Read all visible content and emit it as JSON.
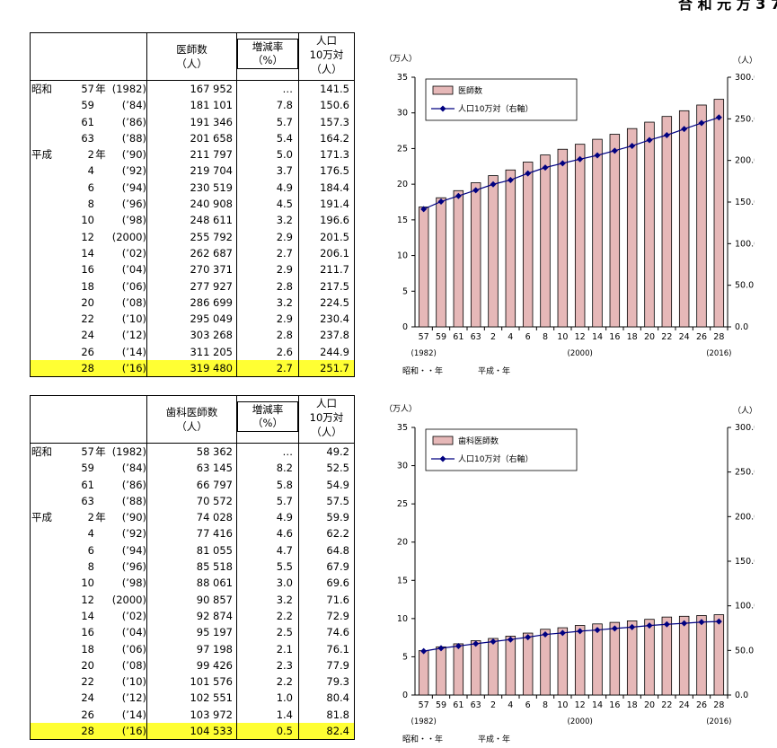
{
  "corner_text": "合 和 元 方 3 7",
  "tables": [
    {
      "headers": {
        "count": "医師数\n（人）",
        "rate": "増減率\n（%）",
        "per": "人口\n10万対\n（人）"
      },
      "rows": [
        {
          "era": "昭和",
          "y": "57",
          "label": "年",
          "p": "(1982)",
          "count": "167 952",
          "rate": "…",
          "per": "141.5"
        },
        {
          "era": "",
          "y": "59",
          "label": "",
          "p": "(’84)",
          "count": "181 101",
          "rate": "7.8",
          "per": "150.6"
        },
        {
          "era": "",
          "y": "61",
          "label": "",
          "p": "(’86)",
          "count": "191 346",
          "rate": "5.7",
          "per": "157.3"
        },
        {
          "era": "",
          "y": "63",
          "label": "",
          "p": "(’88)",
          "count": "201 658",
          "rate": "5.4",
          "per": "164.2"
        },
        {
          "era": "平成",
          "y": "2",
          "label": "年",
          "p": "(’90)",
          "count": "211 797",
          "rate": "5.0",
          "per": "171.3"
        },
        {
          "era": "",
          "y": "4",
          "label": "",
          "p": "(’92)",
          "count": "219 704",
          "rate": "3.7",
          "per": "176.5"
        },
        {
          "era": "",
          "y": "6",
          "label": "",
          "p": "(’94)",
          "count": "230 519",
          "rate": "4.9",
          "per": "184.4"
        },
        {
          "era": "",
          "y": "8",
          "label": "",
          "p": "(’96)",
          "count": "240 908",
          "rate": "4.5",
          "per": "191.4"
        },
        {
          "era": "",
          "y": "10",
          "label": "",
          "p": "(’98)",
          "count": "248 611",
          "rate": "3.2",
          "per": "196.6"
        },
        {
          "era": "",
          "y": "12",
          "label": "",
          "p": "(2000)",
          "count": "255 792",
          "rate": "2.9",
          "per": "201.5"
        },
        {
          "era": "",
          "y": "14",
          "label": "",
          "p": "(’02)",
          "count": "262 687",
          "rate": "2.7",
          "per": "206.1"
        },
        {
          "era": "",
          "y": "16",
          "label": "",
          "p": "(’04)",
          "count": "270 371",
          "rate": "2.9",
          "per": "211.7"
        },
        {
          "era": "",
          "y": "18",
          "label": "",
          "p": "(’06)",
          "count": "277 927",
          "rate": "2.8",
          "per": "217.5"
        },
        {
          "era": "",
          "y": "20",
          "label": "",
          "p": "(’08)",
          "count": "286 699",
          "rate": "3.2",
          "per": "224.5"
        },
        {
          "era": "",
          "y": "22",
          "label": "",
          "p": "(’10)",
          "count": "295 049",
          "rate": "2.9",
          "per": "230.4"
        },
        {
          "era": "",
          "y": "24",
          "label": "",
          "p": "(’12)",
          "count": "303 268",
          "rate": "2.8",
          "per": "237.8"
        },
        {
          "era": "",
          "y": "26",
          "label": "",
          "p": "(’14)",
          "count": "311 205",
          "rate": "2.6",
          "per": "244.9"
        },
        {
          "era": "",
          "y": "28",
          "label": "",
          "p": "(’16)",
          "count": "319 480",
          "rate": "2.7",
          "per": "251.7"
        }
      ]
    },
    {
      "headers": {
        "count": "歯科医師数\n（人）",
        "rate": "増減率\n（%）",
        "per": "人口\n10万対\n（人）"
      },
      "rows": [
        {
          "era": "昭和",
          "y": "57",
          "label": "年",
          "p": "(1982)",
          "count": "58 362",
          "rate": "…",
          "per": "49.2"
        },
        {
          "era": "",
          "y": "59",
          "label": "",
          "p": "(’84)",
          "count": "63 145",
          "rate": "8.2",
          "per": "52.5"
        },
        {
          "era": "",
          "y": "61",
          "label": "",
          "p": "(’86)",
          "count": "66 797",
          "rate": "5.8",
          "per": "54.9"
        },
        {
          "era": "",
          "y": "63",
          "label": "",
          "p": "(’88)",
          "count": "70 572",
          "rate": "5.7",
          "per": "57.5"
        },
        {
          "era": "平成",
          "y": "2",
          "label": "年",
          "p": "(’90)",
          "count": "74 028",
          "rate": "4.9",
          "per": "59.9"
        },
        {
          "era": "",
          "y": "4",
          "label": "",
          "p": "(’92)",
          "count": "77 416",
          "rate": "4.6",
          "per": "62.2"
        },
        {
          "era": "",
          "y": "6",
          "label": "",
          "p": "(’94)",
          "count": "81 055",
          "rate": "4.7",
          "per": "64.8"
        },
        {
          "era": "",
          "y": "8",
          "label": "",
          "p": "(’96)",
          "count": "85 518",
          "rate": "5.5",
          "per": "67.9"
        },
        {
          "era": "",
          "y": "10",
          "label": "",
          "p": "(’98)",
          "count": "88 061",
          "rate": "3.0",
          "per": "69.6"
        },
        {
          "era": "",
          "y": "12",
          "label": "",
          "p": "(2000)",
          "count": "90 857",
          "rate": "3.2",
          "per": "71.6"
        },
        {
          "era": "",
          "y": "14",
          "label": "",
          "p": "(’02)",
          "count": "92 874",
          "rate": "2.2",
          "per": "72.9"
        },
        {
          "era": "",
          "y": "16",
          "label": "",
          "p": "(’04)",
          "count": "95 197",
          "rate": "2.5",
          "per": "74.6"
        },
        {
          "era": "",
          "y": "18",
          "label": "",
          "p": "(’06)",
          "count": "97 198",
          "rate": "2.1",
          "per": "76.1"
        },
        {
          "era": "",
          "y": "20",
          "label": "",
          "p": "(’08)",
          "count": "99 426",
          "rate": "2.3",
          "per": "77.9"
        },
        {
          "era": "",
          "y": "22",
          "label": "",
          "p": "(’10)",
          "count": "101 576",
          "rate": "2.2",
          "per": "79.3"
        },
        {
          "era": "",
          "y": "24",
          "label": "",
          "p": "(’12)",
          "count": "102 551",
          "rate": "1.0",
          "per": "80.4"
        },
        {
          "era": "",
          "y": "26",
          "label": "",
          "p": "(’14)",
          "count": "103 972",
          "rate": "1.4",
          "per": "81.8"
        },
        {
          "era": "",
          "y": "28",
          "label": "",
          "p": "(’16)",
          "count": "104 533",
          "rate": "0.5",
          "per": "82.4"
        }
      ]
    }
  ],
  "highlight_color": "#ffff33",
  "chart_data": [
    {
      "type": "bar",
      "categories": [
        "57",
        "59",
        "61",
        "63",
        "2",
        "4",
        "6",
        "8",
        "10",
        "12",
        "14",
        "16",
        "18",
        "20",
        "22",
        "24",
        "26",
        "28"
      ],
      "series": [
        {
          "name": "医師数",
          "axis": "left",
          "type": "bar",
          "values": [
            16.8,
            18.1,
            19.1,
            20.2,
            21.2,
            22.0,
            23.1,
            24.1,
            24.9,
            25.6,
            26.3,
            27.0,
            27.8,
            28.7,
            29.5,
            30.3,
            31.1,
            31.9
          ]
        },
        {
          "name": "人口10万対（右軸）",
          "axis": "right",
          "type": "line",
          "values": [
            141.5,
            150.6,
            157.3,
            164.2,
            171.3,
            176.5,
            184.4,
            191.4,
            196.6,
            201.5,
            206.1,
            211.7,
            217.5,
            224.5,
            230.4,
            237.8,
            244.9,
            251.7
          ]
        }
      ],
      "ylabel_left": "（万人）",
      "ylabel_right": "（人）",
      "left_ticks": [
        "0",
        "5",
        "10",
        "15",
        "20",
        "25",
        "30",
        "35"
      ],
      "right_ticks": [
        "0.0",
        "50.0",
        "100.0",
        "150.0",
        "200.0",
        "250.0",
        "300.0"
      ],
      "ylim_left": [
        0,
        35
      ],
      "ylim_right": [
        0,
        300
      ],
      "x_sub_labels": [
        "(1982)",
        "(2000)",
        "(2016)"
      ],
      "x_era_labels": [
        "昭和・・年",
        "平成・年"
      ],
      "bar_color": "#e6b8b8",
      "line_color": "#000080",
      "legend_position": "top-left"
    },
    {
      "type": "bar",
      "categories": [
        "57",
        "59",
        "61",
        "63",
        "2",
        "4",
        "6",
        "8",
        "10",
        "12",
        "14",
        "16",
        "18",
        "20",
        "22",
        "24",
        "26",
        "28"
      ],
      "series": [
        {
          "name": "歯科医師数",
          "axis": "left",
          "type": "bar",
          "values": [
            5.8,
            6.3,
            6.7,
            7.1,
            7.4,
            7.7,
            8.1,
            8.6,
            8.8,
            9.1,
            9.3,
            9.5,
            9.7,
            9.9,
            10.2,
            10.3,
            10.4,
            10.5
          ]
        },
        {
          "name": "人口10万対（右軸）",
          "axis": "right",
          "type": "line",
          "values": [
            49.2,
            52.5,
            54.9,
            57.5,
            59.9,
            62.2,
            64.8,
            67.9,
            69.6,
            71.6,
            72.9,
            74.6,
            76.1,
            77.9,
            79.3,
            80.4,
            81.8,
            82.4
          ]
        }
      ],
      "ylabel_left": "（万人）",
      "ylabel_right": "（人）",
      "left_ticks": [
        "0",
        "5",
        "10",
        "15",
        "20",
        "25",
        "30",
        "35"
      ],
      "right_ticks": [
        "0.0",
        "50.0",
        "100.0",
        "150.0",
        "200.0",
        "250.0",
        "300.0"
      ],
      "ylim_left": [
        0,
        35
      ],
      "ylim_right": [
        0,
        300
      ],
      "x_sub_labels": [
        "(1982)",
        "(2000)",
        "(2016)"
      ],
      "x_era_labels": [
        "昭和・・年",
        "平成・年"
      ],
      "bar_color": "#e6b8b8",
      "line_color": "#000080",
      "legend_position": "top-left"
    }
  ]
}
